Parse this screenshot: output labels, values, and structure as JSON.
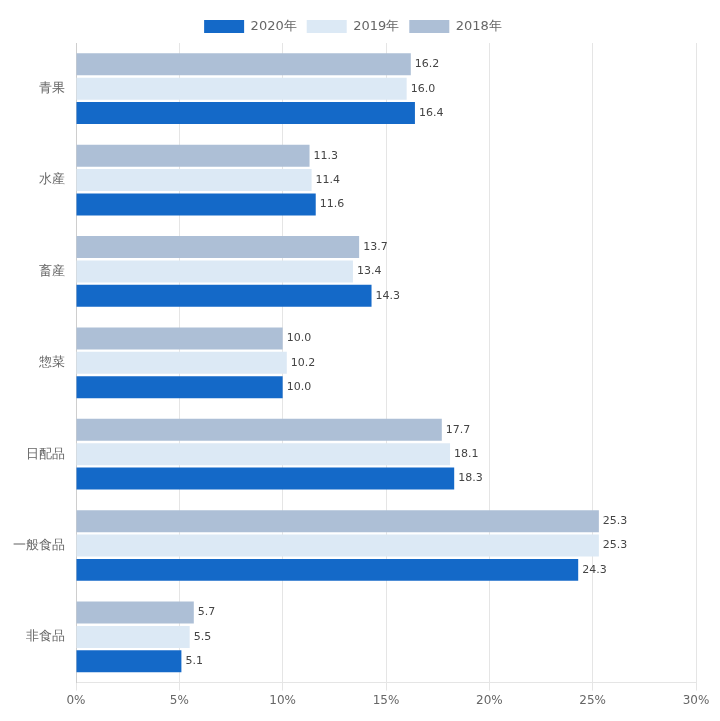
{
  "chart_data": {
    "type": "bar",
    "orientation": "horizontal",
    "categories": [
      "青果",
      "水産",
      "畜産",
      "惣菜",
      "日配品",
      "一般食品",
      "非食品"
    ],
    "series": [
      {
        "name": "2020年",
        "color": "#1469c8",
        "values": [
          16.4,
          11.6,
          14.3,
          10.0,
          18.3,
          24.3,
          5.1
        ],
        "value_labels": [
          "16.4",
          "11.6",
          "14.3",
          "10.0",
          "18.3",
          "24.3",
          "5.1"
        ]
      },
      {
        "name": "2019年",
        "color": "#dce9f5",
        "values": [
          16.0,
          11.4,
          13.4,
          10.2,
          18.1,
          25.3,
          5.5
        ],
        "value_labels": [
          "16.0",
          "11.4",
          "13.4",
          "10.2",
          "18.1",
          "25.3",
          "5.5"
        ]
      },
      {
        "name": "2018年",
        "color": "#adbfd6",
        "values": [
          16.2,
          11.3,
          13.7,
          10.0,
          17.7,
          25.3,
          5.7
        ],
        "value_labels": [
          "16.2",
          "11.3",
          "13.7",
          "10.0",
          "17.7",
          "25.3",
          "5.7"
        ]
      }
    ],
    "xlim": [
      0,
      30
    ],
    "xticks": [
      {
        "value": 0,
        "label": "0%"
      },
      {
        "value": 5,
        "label": "5%"
      },
      {
        "value": 10,
        "label": "10%"
      },
      {
        "value": 15,
        "label": "15%"
      },
      {
        "value": 20,
        "label": "20%"
      },
      {
        "value": 25,
        "label": "25%"
      },
      {
        "value": 30,
        "label": "30%"
      }
    ],
    "grid": true,
    "legend": "top",
    "data_labels": true
  }
}
